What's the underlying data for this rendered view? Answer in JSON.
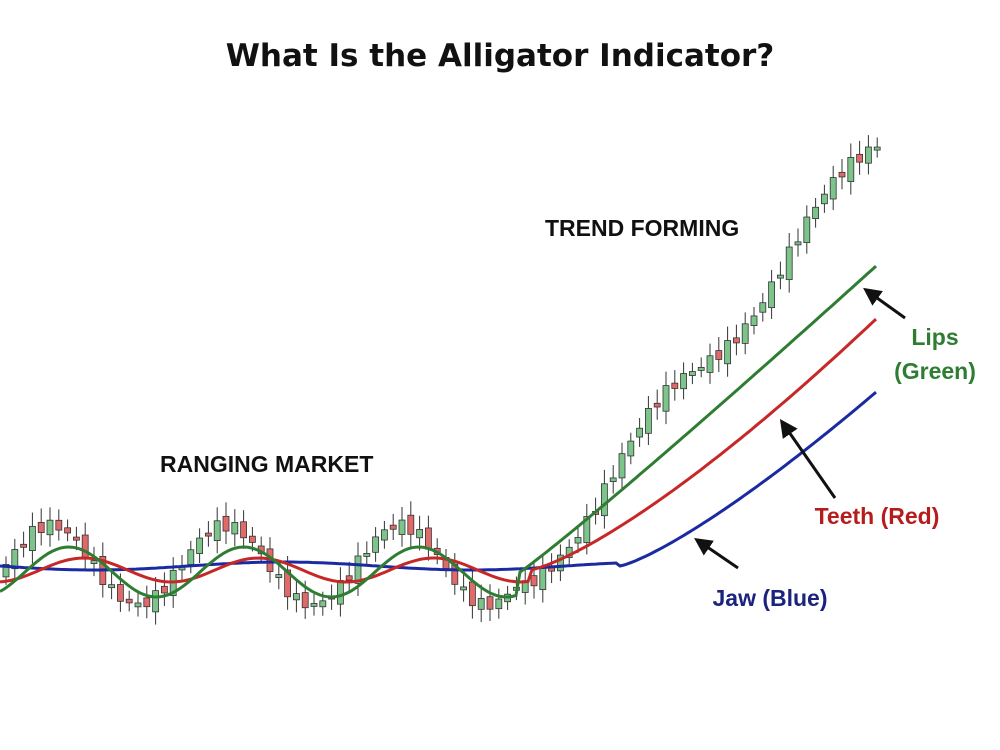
{
  "header": {
    "title": "What Is the Alligator Indicator?"
  },
  "annotations": {
    "ranging": "RANGING MARKET",
    "trend": "TREND FORMING"
  },
  "labels": {
    "lips": [
      "Lips",
      "(Green)"
    ],
    "teeth": "Teeth (Red)",
    "jaw": "Jaw (Blue)"
  }
}
